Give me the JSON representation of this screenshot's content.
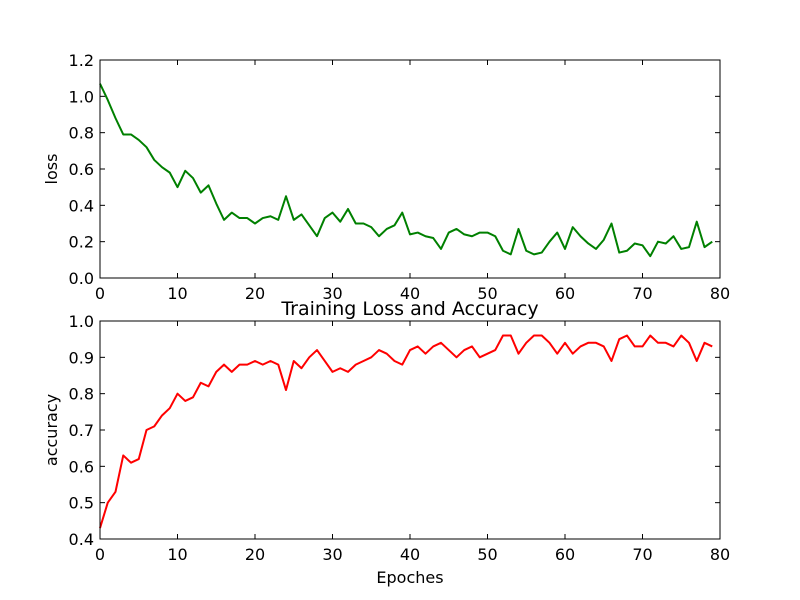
{
  "chart_data": [
    {
      "type": "line",
      "title": "",
      "xlabel": "",
      "ylabel": "loss",
      "xlim": [
        0,
        80
      ],
      "ylim": [
        0.0,
        1.2
      ],
      "xticks": [
        "0",
        "10",
        "20",
        "30",
        "40",
        "50",
        "60",
        "70",
        "80"
      ],
      "yticks": [
        "0.0",
        "0.2",
        "0.4",
        "0.6",
        "0.8",
        "1.0",
        "1.2"
      ],
      "grid": false,
      "series": [
        {
          "color": "#008000",
          "x": [
            0,
            1,
            2,
            3,
            4,
            5,
            6,
            7,
            8,
            9,
            10,
            11,
            12,
            13,
            14,
            15,
            16,
            17,
            18,
            19,
            20,
            21,
            22,
            23,
            24,
            25,
            26,
            27,
            28,
            29,
            30,
            31,
            32,
            33,
            34,
            35,
            36,
            37,
            38,
            39,
            40,
            41,
            42,
            43,
            44,
            45,
            46,
            47,
            48,
            49,
            50,
            51,
            52,
            53,
            54,
            55,
            56,
            57,
            58,
            59,
            60,
            61,
            62,
            63,
            64,
            65,
            66,
            67,
            68,
            69,
            70,
            71,
            72,
            73,
            74,
            75,
            76,
            77,
            78,
            79
          ],
          "values": [
            1.07,
            0.98,
            0.88,
            0.79,
            0.79,
            0.76,
            0.72,
            0.65,
            0.61,
            0.58,
            0.5,
            0.59,
            0.55,
            0.47,
            0.51,
            0.41,
            0.32,
            0.36,
            0.33,
            0.33,
            0.3,
            0.33,
            0.34,
            0.32,
            0.45,
            0.32,
            0.35,
            0.29,
            0.23,
            0.33,
            0.36,
            0.31,
            0.38,
            0.3,
            0.3,
            0.28,
            0.23,
            0.27,
            0.29,
            0.36,
            0.24,
            0.25,
            0.23,
            0.22,
            0.16,
            0.25,
            0.27,
            0.24,
            0.23,
            0.25,
            0.25,
            0.23,
            0.15,
            0.13,
            0.27,
            0.15,
            0.13,
            0.14,
            0.2,
            0.25,
            0.16,
            0.28,
            0.23,
            0.19,
            0.16,
            0.21,
            0.3,
            0.14,
            0.15,
            0.19,
            0.18,
            0.12,
            0.2,
            0.19,
            0.23,
            0.16,
            0.17,
            0.31,
            0.17,
            0.2
          ]
        }
      ]
    },
    {
      "type": "line",
      "title": "Training Loss and Accuracy",
      "xlabel": "Epoches",
      "ylabel": "accuracy",
      "xlim": [
        0,
        80
      ],
      "ylim": [
        0.4,
        1.0
      ],
      "xticks": [
        "0",
        "10",
        "20",
        "30",
        "40",
        "50",
        "60",
        "70",
        "80"
      ],
      "yticks": [
        "0.4",
        "0.5",
        "0.6",
        "0.7",
        "0.8",
        "0.9",
        "1.0"
      ],
      "grid": false,
      "series": [
        {
          "color": "#ff0000",
          "x": [
            0,
            1,
            2,
            3,
            4,
            5,
            6,
            7,
            8,
            9,
            10,
            11,
            12,
            13,
            14,
            15,
            16,
            17,
            18,
            19,
            20,
            21,
            22,
            23,
            24,
            25,
            26,
            27,
            28,
            29,
            30,
            31,
            32,
            33,
            34,
            35,
            36,
            37,
            38,
            39,
            40,
            41,
            42,
            43,
            44,
            45,
            46,
            47,
            48,
            49,
            50,
            51,
            52,
            53,
            54,
            55,
            56,
            57,
            58,
            59,
            60,
            61,
            62,
            63,
            64,
            65,
            66,
            67,
            68,
            69,
            70,
            71,
            72,
            73,
            74,
            75,
            76,
            77,
            78,
            79
          ],
          "values": [
            0.43,
            0.5,
            0.53,
            0.63,
            0.61,
            0.62,
            0.7,
            0.71,
            0.74,
            0.76,
            0.8,
            0.78,
            0.79,
            0.83,
            0.82,
            0.86,
            0.88,
            0.86,
            0.88,
            0.88,
            0.89,
            0.88,
            0.89,
            0.88,
            0.81,
            0.89,
            0.87,
            0.9,
            0.92,
            0.89,
            0.86,
            0.87,
            0.86,
            0.88,
            0.89,
            0.9,
            0.92,
            0.91,
            0.89,
            0.88,
            0.92,
            0.93,
            0.91,
            0.93,
            0.94,
            0.92,
            0.9,
            0.92,
            0.93,
            0.9,
            0.91,
            0.92,
            0.96,
            0.96,
            0.91,
            0.94,
            0.96,
            0.96,
            0.94,
            0.91,
            0.94,
            0.91,
            0.93,
            0.94,
            0.94,
            0.93,
            0.89,
            0.95,
            0.96,
            0.93,
            0.93,
            0.96,
            0.94,
            0.94,
            0.93,
            0.96,
            0.94,
            0.89,
            0.94,
            0.93
          ]
        }
      ]
    }
  ]
}
